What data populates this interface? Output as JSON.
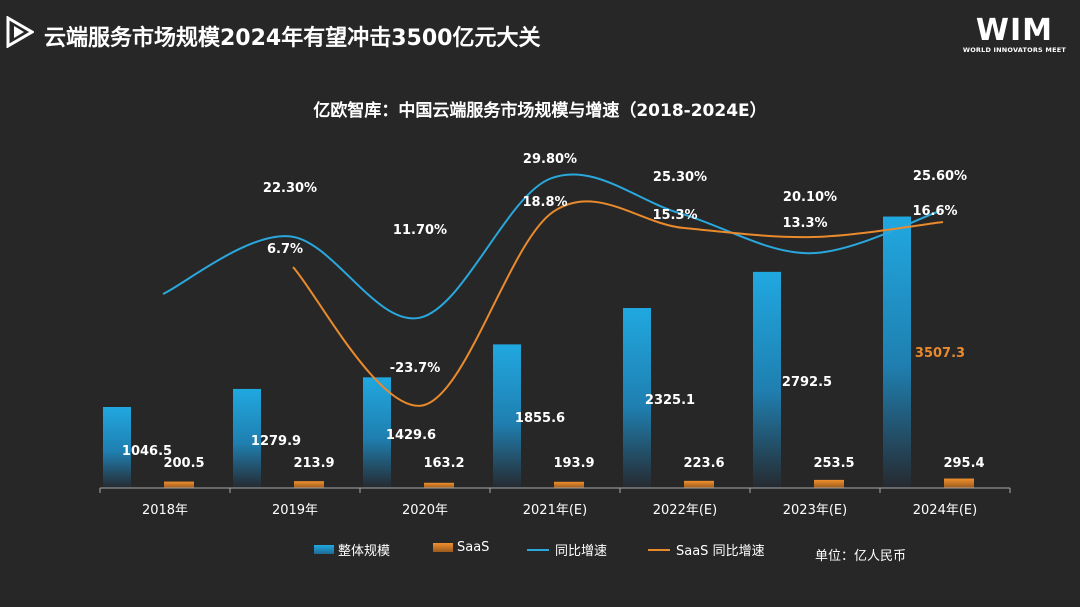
{
  "header": {
    "title": "云端服务市场规模2024年有望冲击3500亿元大关"
  },
  "brand": {
    "logo_text": "WIM",
    "logo_sub": "WORLD INNOVATORS MEET"
  },
  "chart_data": {
    "type": "bar",
    "title": "亿欧智库：中国云端服务市场规模与增速（2018-2024E）",
    "categories": [
      "2018年",
      "2019年",
      "2020年",
      "2021年(E)",
      "2022年(E)",
      "2023年(E)",
      "2024年(E)"
    ],
    "series": [
      {
        "name": "整体规模",
        "type": "bar",
        "axis": "left",
        "color": "#2aa7dc",
        "values": [
          1046.5,
          1279.9,
          1429.6,
          1855.6,
          2325.1,
          2792.5,
          3507.3
        ],
        "labels": [
          "1046.5",
          "1279.9",
          "1429.6",
          "1855.6",
          "2325.1",
          "2792.5",
          "3507.3"
        ]
      },
      {
        "name": "SaaS",
        "type": "bar",
        "axis": "left",
        "color": "#e98a2c",
        "values": [
          200.5,
          213.9,
          163.2,
          193.9,
          223.6,
          253.5,
          295.4
        ],
        "labels": [
          "200.5",
          "213.9",
          "163.2",
          "193.9",
          "223.6",
          "253.5",
          "295.4"
        ]
      },
      {
        "name": "同比增速",
        "type": "line",
        "axis": "right",
        "color": "#2aa7dc",
        "values": [
          null,
          22.3,
          11.7,
          29.8,
          25.3,
          20.1,
          25.6
        ],
        "labels": [
          "",
          "22.30%",
          "11.70%",
          "29.80%",
          "25.30%",
          "20.10%",
          "25.60%"
        ]
      },
      {
        "name": "SaaS 同比增速",
        "type": "line",
        "axis": "right",
        "color": "#e98a2c",
        "values": [
          null,
          6.7,
          -23.7,
          18.8,
          15.3,
          13.3,
          16.6
        ],
        "labels": [
          "",
          "6.7%",
          "-23.7%",
          "18.8%",
          "15.3%",
          "13.3%",
          "16.6%"
        ]
      }
    ],
    "legend_position": "bottom",
    "unit_label": "单位：亿人民币",
    "grid": false
  }
}
